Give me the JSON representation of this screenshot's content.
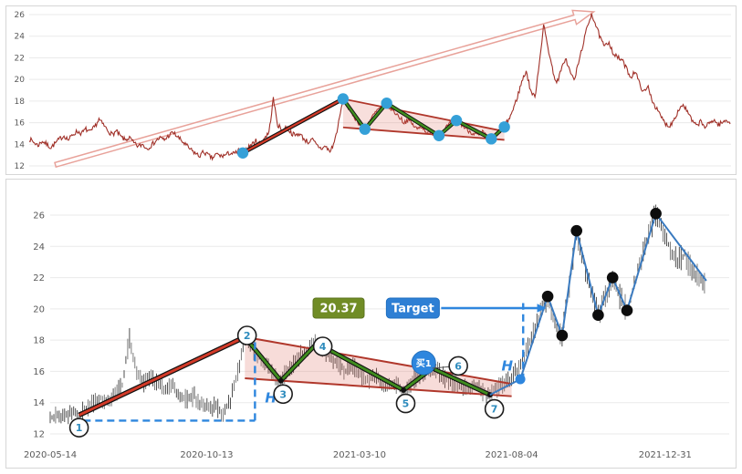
{
  "chart_data": [
    {
      "type": "line",
      "name": "overview-price-chart",
      "line_color": "#a03028",
      "ylim": [
        12,
        26
      ],
      "yticks": [
        12,
        14,
        16,
        18,
        20,
        22,
        24,
        26
      ],
      "weeks": 162,
      "weekly_close": [
        14.5,
        14.2,
        13.9,
        14.3,
        14.0,
        13.7,
        14.1,
        14.5,
        14.8,
        14.4,
        14.9,
        15.2,
        15.0,
        15.4,
        15.1,
        15.6,
        16.3,
        15.8,
        15.3,
        14.9,
        15.2,
        14.7,
        14.4,
        14.6,
        14.1,
        13.8,
        14.0,
        13.6,
        13.9,
        14.3,
        14.6,
        14.4,
        14.8,
        15.1,
        14.7,
        14.3,
        13.9,
        13.5,
        13.2,
        12.9,
        13.3,
        13.0,
        12.7,
        13.1,
        12.9,
        13.0,
        13.2,
        13.1,
        13.4,
        13.2,
        13.6,
        14.0,
        14.3,
        14.1,
        14.6,
        15.1,
        18.2,
        15.8,
        15.3,
        15.6,
        15.1,
        14.8,
        15.0,
        14.5,
        14.2,
        14.4,
        13.9,
        13.6,
        13.8,
        13.3,
        14.2,
        16.0,
        18.2,
        17.5,
        16.9,
        16.3,
        15.8,
        15.4,
        16.1,
        16.7,
        17.2,
        17.5,
        17.8,
        17.3,
        16.9,
        16.5,
        16.0,
        16.3,
        15.8,
        15.4,
        15.7,
        15.2,
        15.0,
        15.1,
        14.8,
        15.3,
        15.7,
        16.0,
        16.2,
        15.9,
        15.5,
        15.2,
        15.0,
        14.8,
        15.1,
        14.7,
        14.5,
        14.9,
        15.2,
        15.6,
        16.3,
        17.2,
        18.4,
        19.8,
        20.8,
        19.0,
        18.3,
        21.5,
        25.0,
        23.0,
        21.0,
        19.6,
        20.8,
        22.0,
        20.8,
        19.9,
        21.5,
        23.2,
        24.8,
        26.1,
        25.0,
        23.8,
        23.0,
        23.5,
        22.4,
        22.0,
        21.8,
        21.0,
        20.2,
        20.8,
        19.6,
        18.8,
        19.3,
        18.0,
        17.2,
        16.5,
        15.9,
        15.7,
        16.4,
        17.2,
        17.7,
        17.0,
        16.2,
        15.7,
        16.1,
        15.6,
        15.9,
        16.3,
        15.8,
        16.0,
        16.2,
        16.0
      ],
      "trend_arrow": {
        "x1": 6,
        "p1": 12.1,
        "x2": 129.5,
        "p2": 26.25,
        "color": "#e8a29a"
      },
      "pole": {
        "x1": 49,
        "p1": 13.2,
        "x2": 72,
        "p2": 18.2,
        "color": "#d23a28"
      },
      "channel": {
        "fill": "rgba(222,110,95,0.22)",
        "border": "#b0372b",
        "upper": {
          "x1": 72,
          "p1": 18.2,
          "x2": 109,
          "p2": 15.2
        },
        "lower": {
          "x1": 72,
          "p1": 15.56,
          "x2": 109,
          "p2": 14.41
        }
      },
      "zigzag": [
        [
          72,
          18.2
        ],
        [
          77,
          15.4
        ],
        [
          82,
          17.8
        ],
        [
          94,
          14.8
        ],
        [
          98,
          16.2
        ],
        [
          106,
          14.5
        ],
        [
          109,
          15.6
        ]
      ],
      "zigzag_color": "#3f8c1e",
      "swing_dots": [
        [
          49,
          13.2
        ],
        [
          72,
          18.2
        ],
        [
          77,
          15.4
        ],
        [
          82,
          17.8
        ],
        [
          94,
          14.8
        ],
        [
          98,
          16.2
        ],
        [
          106,
          14.5
        ],
        [
          109,
          15.6
        ]
      ],
      "swing_dot_color": "#35a0d8"
    },
    {
      "type": "ohlc-bars",
      "name": "flag-pattern-analysis-chart",
      "bar_color": "#3c3c3c",
      "ylim": [
        12,
        27
      ],
      "yticks": [
        12,
        14,
        16,
        18,
        20,
        22,
        24,
        26
      ],
      "x_tick_labels": [
        {
          "label": "2020-05-14",
          "w": 0
        },
        {
          "label": "2020-10-13",
          "w": 21.7
        },
        {
          "label": "2021-03-10",
          "w": 42.9
        },
        {
          "label": "2021-08-04",
          "w": 64
        },
        {
          "label": "2021-12-31",
          "w": 85.3
        }
      ],
      "weeks": 92,
      "weekly_close": [
        13.0,
        13.2,
        13.1,
        13.4,
        13.2,
        13.6,
        14.0,
        14.3,
        14.1,
        14.6,
        15.1,
        18.2,
        15.8,
        15.3,
        15.6,
        15.1,
        14.8,
        15.0,
        14.5,
        14.2,
        14.4,
        13.9,
        13.6,
        13.8,
        13.3,
        14.2,
        16.0,
        18.2,
        17.5,
        16.9,
        16.3,
        15.8,
        15.4,
        16.1,
        16.7,
        17.2,
        17.5,
        17.8,
        17.3,
        16.9,
        16.5,
        16.0,
        16.3,
        15.8,
        15.4,
        15.7,
        15.2,
        15.0,
        15.1,
        14.8,
        15.3,
        15.7,
        16.0,
        16.2,
        15.9,
        15.5,
        15.2,
        15.0,
        14.8,
        15.1,
        14.7,
        14.5,
        14.9,
        15.2,
        15.6,
        16.3,
        17.2,
        18.4,
        19.8,
        20.8,
        19.0,
        18.3,
        21.5,
        25.0,
        23.0,
        21.0,
        19.6,
        20.8,
        22.0,
        20.8,
        19.9,
        21.5,
        23.2,
        24.8,
        26.1,
        25.0,
        23.8,
        23.0,
        23.5,
        22.4,
        22.0,
        21.8
      ],
      "pole": {
        "x1": 4,
        "p1": 13.2,
        "x2": 27,
        "p2": 18.2,
        "color": "#d23a28"
      },
      "channel": {
        "fill": "rgba(222,110,95,0.24)",
        "border": "#b0372b",
        "upper": {
          "x1": 27,
          "p1": 18.2,
          "x2": 64,
          "p2": 15.2
        },
        "lower": {
          "x1": 27,
          "p1": 15.56,
          "x2": 64,
          "p2": 14.41
        }
      },
      "zigzag": [
        [
          27,
          18.2
        ],
        [
          32,
          15.4
        ],
        [
          37,
          17.8
        ],
        [
          49,
          14.8
        ],
        [
          53,
          16.2
        ],
        [
          61,
          14.5
        ]
      ],
      "zigzag_color": "#3f8c1e",
      "numbered_points": [
        {
          "n": "1",
          "w": 4,
          "p": 13.2,
          "cx": 4,
          "cp": 12.4
        },
        {
          "n": "2",
          "w": 27,
          "p": 18.2,
          "cx": 27.3,
          "cp": 18.3
        },
        {
          "n": "3",
          "w": 32,
          "p": 15.4,
          "cx": 32.3,
          "cp": 14.55
        },
        {
          "n": "4",
          "w": 37,
          "p": 17.8,
          "cx": 37.8,
          "cp": 17.6
        },
        {
          "n": "5",
          "w": 49,
          "p": 14.8,
          "cx": 49.3,
          "cp": 13.95
        },
        {
          "n": "6",
          "w": 53,
          "p": 16.2,
          "cx": 56.6,
          "cp": 16.35
        },
        {
          "n": "7",
          "w": 61,
          "p": 14.5,
          "cx": 61.6,
          "cp": 13.6
        }
      ],
      "measure1": {
        "label": "H",
        "hx1": 4.6,
        "hx2": 28.4,
        "hp": 12.85,
        "vx": 28.4,
        "vp1": 12.85,
        "vp2": 18.25,
        "label_w": 29.8,
        "label_p": 14.0
      },
      "measure2": {
        "label": "H",
        "vx": 65.6,
        "vp1": 15.4,
        "vp2": 20.37,
        "label_w": 62.6,
        "label_p": 16.05
      },
      "measure_color": "#2e86de",
      "price_target_label": {
        "text": "20.37",
        "w": 40,
        "p": 20.05,
        "bg": "#708c25"
      },
      "target_label": {
        "text": "Target",
        "w": 50.3,
        "p": 20.05,
        "bg": "#2e7fd4",
        "arrow_to_w": 68.8
      },
      "buy_marker": {
        "text": "买1",
        "w": 51.8,
        "p": 16.55,
        "bg": "#2e86de"
      },
      "breakout_dot": {
        "w": 65.2,
        "p": 15.5,
        "color": "#2e86de"
      },
      "rally_line": {
        "color": "#3a7abf",
        "points": [
          [
            61,
            14.5
          ],
          [
            65.2,
            15.5
          ],
          [
            69,
            20.8
          ],
          [
            71,
            18.3
          ],
          [
            73,
            25.0
          ],
          [
            76,
            19.6
          ],
          [
            78,
            22.0
          ],
          [
            80,
            19.9
          ],
          [
            84,
            26.1
          ],
          [
            91,
            21.8
          ]
        ]
      },
      "black_dots": [
        [
          69,
          20.8
        ],
        [
          71,
          18.3
        ],
        [
          73,
          25.0
        ],
        [
          76,
          19.6
        ],
        [
          78,
          22.0
        ],
        [
          80,
          19.9
        ],
        [
          84,
          26.1
        ]
      ]
    }
  ]
}
